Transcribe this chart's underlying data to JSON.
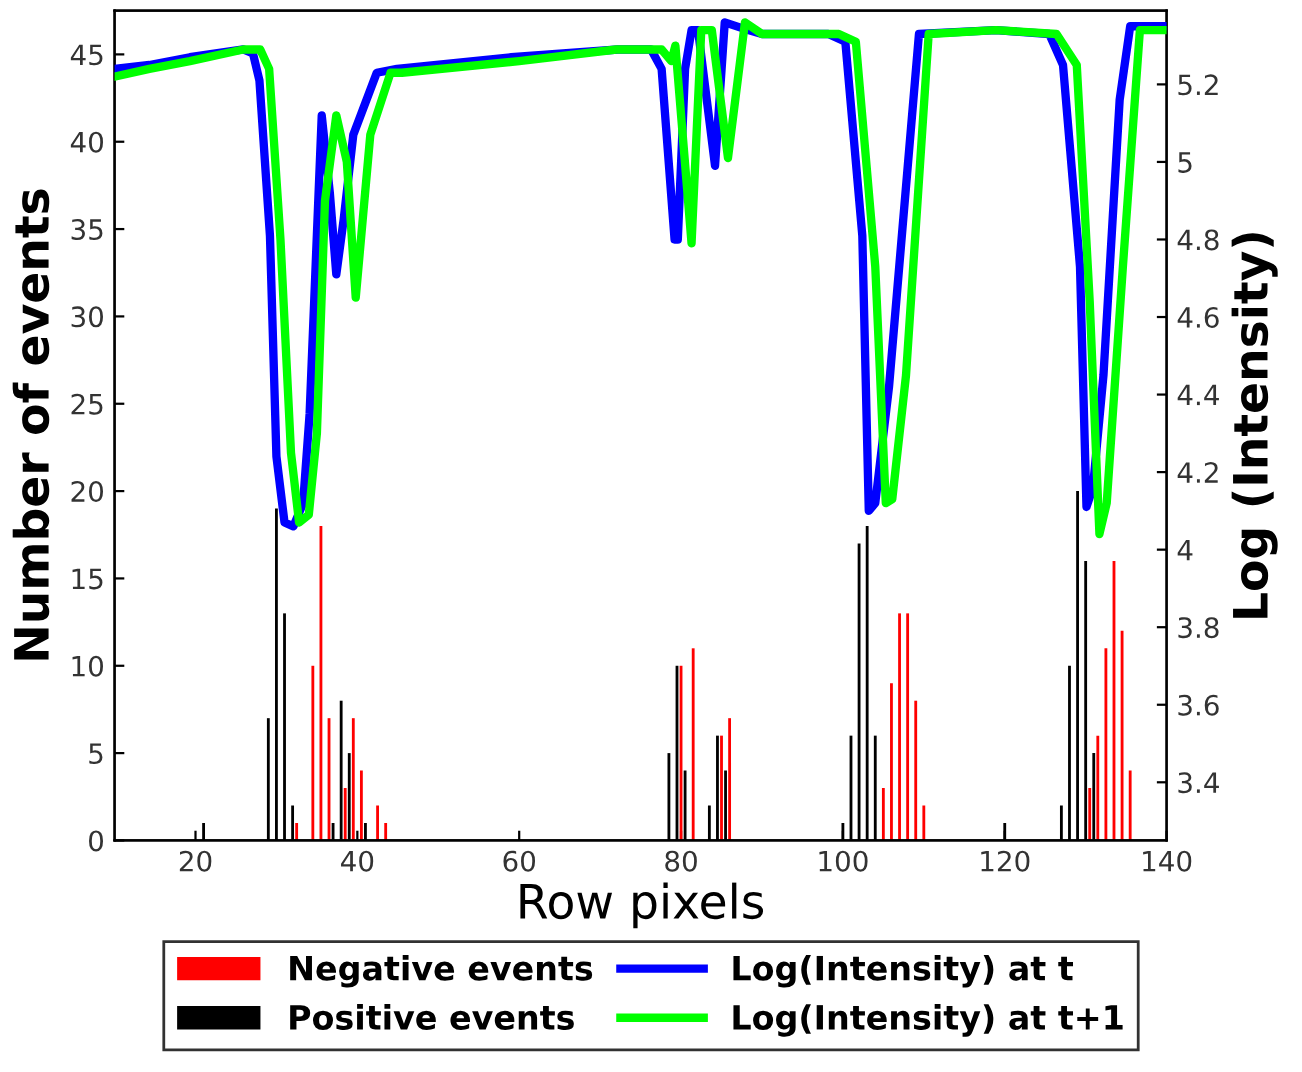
{
  "chart_data": {
    "type": "bar",
    "xlabel": "Row pixels",
    "ylabel": "Number of events",
    "y2label": "Log (Intensity)",
    "xlim": [
      10,
      140
    ],
    "xticks": [
      20,
      40,
      60,
      80,
      100,
      120,
      140
    ],
    "ylim": [
      0,
      47.5
    ],
    "yticks": [
      0,
      5,
      10,
      15,
      20,
      25,
      30,
      35,
      40,
      45
    ],
    "y2lim": [
      3.25,
      5.39
    ],
    "y2ticks": [
      3.4,
      3.6,
      3.8,
      4,
      4.2,
      4.4,
      4.6,
      4.8,
      5,
      5.2
    ],
    "grid": false,
    "legend": "bottom",
    "series": [
      {
        "name": "Negative events",
        "color": "#ff0000",
        "x": [
          32.5,
          34.5,
          35.5,
          36.5,
          38.5,
          39.5,
          40.5,
          42.5,
          43.5,
          80,
          81.5,
          85,
          86,
          105,
          106,
          107,
          108,
          109,
          110,
          130.5,
          131.5,
          132.5,
          133.5,
          134.5,
          135.5
        ],
        "values": [
          1,
          10,
          18,
          7,
          3,
          7,
          4,
          2,
          1,
          10,
          11,
          6,
          7,
          3,
          9,
          13,
          13,
          8,
          2,
          3,
          6,
          11,
          16,
          12,
          4
        ]
      },
      {
        "name": "Positive events",
        "color": "#000000",
        "x": [
          21,
          29,
          30,
          31,
          32,
          37,
          38,
          39,
          41,
          78.5,
          79.5,
          80.5,
          83.5,
          84.5,
          85.5,
          100,
          101,
          102,
          103,
          104,
          120,
          127,
          128,
          129,
          130,
          131
        ],
        "values": [
          1,
          7,
          19,
          13,
          2,
          1,
          8,
          5,
          1,
          5,
          10,
          4,
          2,
          6,
          4,
          1,
          6,
          17,
          18,
          6,
          1,
          2,
          10,
          20,
          16,
          5
        ]
      },
      {
        "name": "Log(Intensity) at t",
        "type": "line",
        "axis": "y2",
        "color": "#0000ff",
        "x": [
          10,
          14.3,
          19.3,
          25.9,
          27.1,
          27.9,
          29.2,
          30.0,
          31.0,
          32.1,
          33.3,
          34.1,
          35.6,
          36.6,
          37.4,
          38.3,
          39.5,
          42.4,
          44.9,
          59.0,
          72.2,
          76.3,
          77.6,
          79.2,
          79.6,
          80.5,
          81.3,
          82.1,
          84.2,
          85.4,
          88.3,
          90,
          98.2,
          100.3,
          102.4,
          103.2,
          104.0,
          105.7,
          109.4,
          118.9,
          125.5,
          127.2,
          129.3,
          130.1,
          130.9,
          132.2,
          134.2,
          135.5,
          140
        ],
        "values": [
          5.24,
          5.25,
          5.27,
          5.29,
          5.28,
          5.21,
          4.81,
          4.24,
          4.07,
          4.06,
          4.12,
          4.35,
          5.12,
          4.92,
          4.71,
          4.85,
          5.07,
          5.23,
          5.24,
          5.27,
          5.29,
          5.29,
          5.24,
          4.8,
          4.8,
          5.24,
          5.34,
          5.34,
          4.99,
          5.36,
          5.34,
          5.33,
          5.33,
          5.31,
          4.81,
          4.1,
          4.12,
          4.42,
          5.33,
          5.34,
          5.33,
          5.25,
          4.73,
          4.11,
          4.16,
          4.45,
          5.16,
          5.35,
          5.35
        ]
      },
      {
        "name": "Log(Intensity) at t+1",
        "type": "line",
        "axis": "y2",
        "color": "#00ff00",
        "x": [
          10,
          14.3,
          19.3,
          25.9,
          28.0,
          29.1,
          30.5,
          31.8,
          32.8,
          34.0,
          35.0,
          36.0,
          37.4,
          38.7,
          39.8,
          41.6,
          44.1,
          45.5,
          60,
          72,
          77.6,
          78.8,
          79.3,
          81.3,
          82.5,
          83.8,
          85.8,
          87.9,
          90,
          99.5,
          101.6,
          104.0,
          105.3,
          106.1,
          107.8,
          110.6,
          118.9,
          126.4,
          128.9,
          130.5,
          131.7,
          132.6,
          134.6,
          136.7,
          140
        ],
        "values": [
          5.22,
          5.24,
          5.26,
          5.29,
          5.29,
          5.24,
          4.8,
          4.25,
          4.07,
          4.09,
          4.3,
          4.9,
          5.12,
          5.0,
          4.65,
          5.07,
          5.23,
          5.23,
          5.26,
          5.29,
          5.29,
          5.26,
          5.3,
          4.79,
          5.34,
          5.34,
          5.01,
          5.36,
          5.33,
          5.33,
          5.31,
          4.73,
          4.12,
          4.13,
          4.45,
          5.33,
          5.34,
          5.33,
          5.25,
          4.64,
          4.04,
          4.12,
          4.73,
          5.34,
          5.34
        ]
      }
    ]
  }
}
